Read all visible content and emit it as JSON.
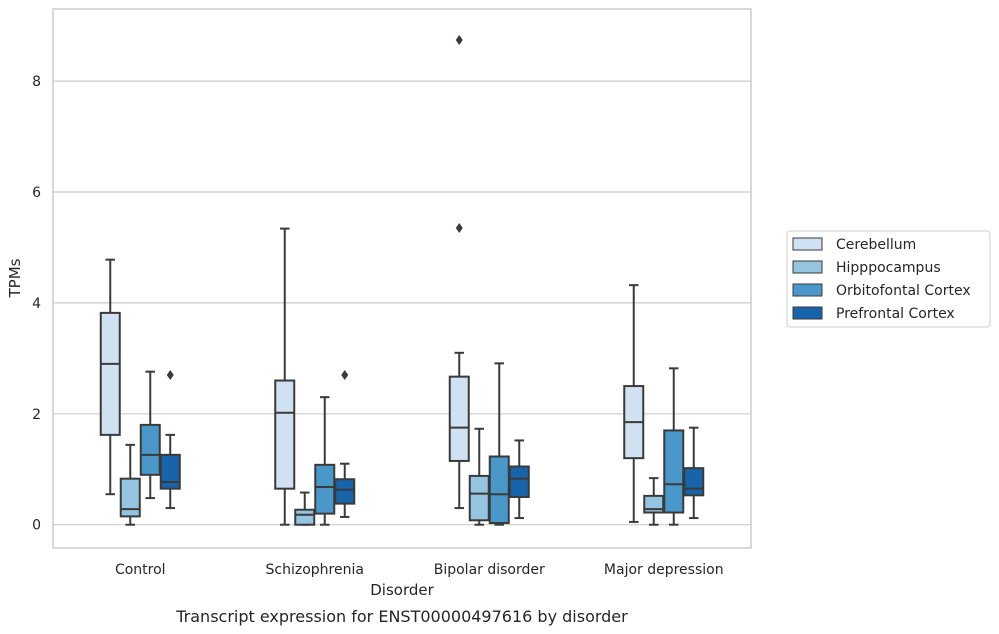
{
  "caption": "Transcript expression for ENST00000497616 by disorder",
  "colors": {
    "Cerebellum": "#d0e1f2",
    "Hipppocampus": "#94c4df",
    "Orbitofontal Cortex": "#4a98c9",
    "Prefrontal Cortex": "#1764ab",
    "line": "#3a3a3a",
    "grid": "#cccccc"
  },
  "chart_data": {
    "type": "box",
    "xlabel": "Disorder",
    "ylabel": "TPMs",
    "ylim": [
      -0.42,
      9.3
    ],
    "yticks": [
      0,
      2,
      4,
      6,
      8
    ],
    "grid": "horizontal",
    "legend_position": "right",
    "categories": [
      "Control",
      "Schizophrenia",
      "Bipolar disorder",
      "Major depression"
    ],
    "series": [
      {
        "name": "Cerebellum",
        "boxes": [
          {
            "whislo": 0.55,
            "q1": 1.62,
            "med": 2.9,
            "q3": 3.82,
            "whishi": 4.78,
            "fliers": []
          },
          {
            "whislo": 0.0,
            "q1": 0.65,
            "med": 2.02,
            "q3": 2.6,
            "whishi": 5.34,
            "fliers": []
          },
          {
            "whislo": 0.3,
            "q1": 1.15,
            "med": 1.75,
            "q3": 2.67,
            "whishi": 3.1,
            "fliers": [
              5.35,
              8.74
            ]
          },
          {
            "whislo": 0.05,
            "q1": 1.2,
            "med": 1.85,
            "q3": 2.5,
            "whishi": 4.32,
            "fliers": []
          }
        ]
      },
      {
        "name": "Hipppocampus",
        "boxes": [
          {
            "whislo": 0.0,
            "q1": 0.15,
            "med": 0.28,
            "q3": 0.83,
            "whishi": 1.44,
            "fliers": []
          },
          {
            "whislo": 0.0,
            "q1": 0.0,
            "med": 0.18,
            "q3": 0.27,
            "whishi": 0.58,
            "fliers": []
          },
          {
            "whislo": 0.0,
            "q1": 0.08,
            "med": 0.56,
            "q3": 0.88,
            "whishi": 1.73,
            "fliers": []
          },
          {
            "whislo": 0.0,
            "q1": 0.22,
            "med": 0.28,
            "q3": 0.52,
            "whishi": 0.84,
            "fliers": []
          }
        ]
      },
      {
        "name": "Orbitofontal Cortex",
        "boxes": [
          {
            "whislo": 0.48,
            "q1": 0.9,
            "med": 1.26,
            "q3": 1.8,
            "whishi": 2.76,
            "fliers": []
          },
          {
            "whislo": 0.0,
            "q1": 0.2,
            "med": 0.68,
            "q3": 1.08,
            "whishi": 2.3,
            "fliers": []
          },
          {
            "whislo": 0.0,
            "q1": 0.03,
            "med": 0.55,
            "q3": 1.23,
            "whishi": 2.91,
            "fliers": []
          },
          {
            "whislo": 0.0,
            "q1": 0.22,
            "med": 0.73,
            "q3": 1.7,
            "whishi": 2.82,
            "fliers": []
          }
        ]
      },
      {
        "name": "Prefrontal Cortex",
        "boxes": [
          {
            "whislo": 0.3,
            "q1": 0.65,
            "med": 0.77,
            "q3": 1.26,
            "whishi": 1.62,
            "fliers": [
              2.7
            ]
          },
          {
            "whislo": 0.14,
            "q1": 0.38,
            "med": 0.63,
            "q3": 0.82,
            "whishi": 1.1,
            "fliers": [
              2.7
            ]
          },
          {
            "whislo": 0.12,
            "q1": 0.5,
            "med": 0.83,
            "q3": 1.05,
            "whishi": 1.52,
            "fliers": []
          },
          {
            "whislo": 0.12,
            "q1": 0.53,
            "med": 0.65,
            "q3": 1.02,
            "whishi": 1.75,
            "fliers": []
          }
        ]
      }
    ]
  }
}
